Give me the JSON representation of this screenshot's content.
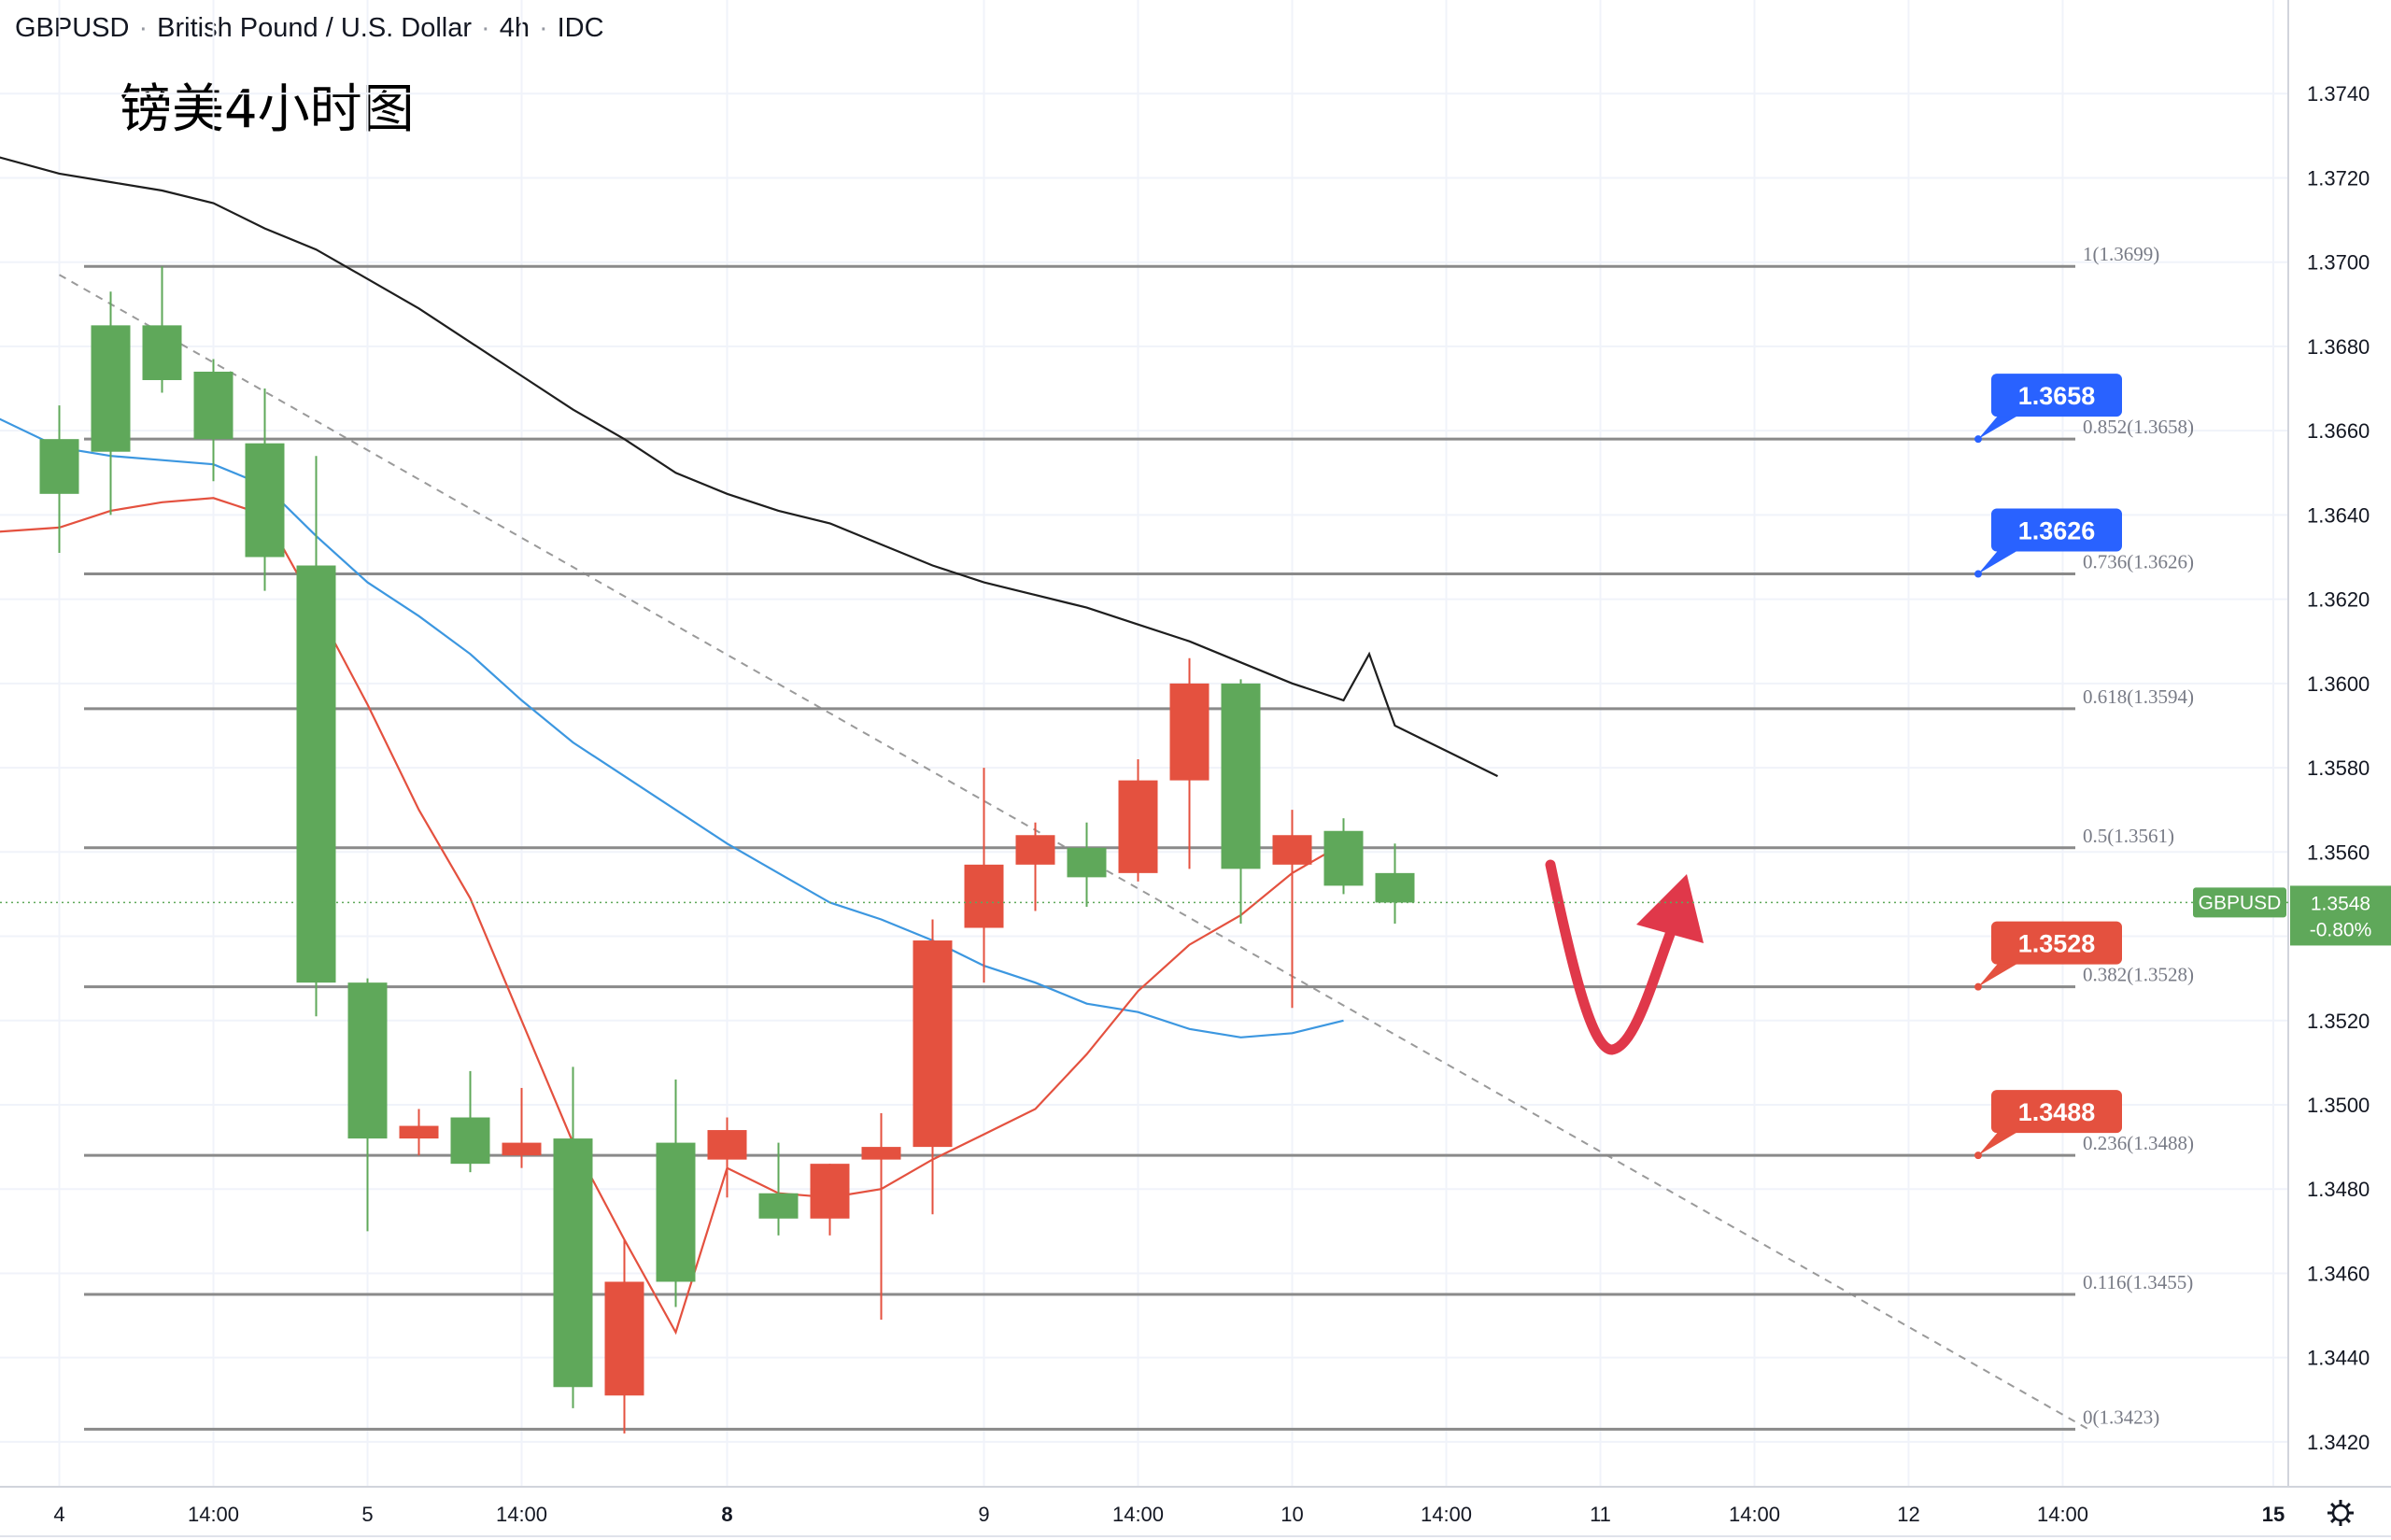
{
  "header": {
    "symbol": "GBPUSD",
    "name": "British Pound / U.S. Dollar",
    "interval": "4h",
    "source": "IDC"
  },
  "annotation_title": "镑美4小时图",
  "colors": {
    "up": "#5fa85a",
    "down": "#e4513f",
    "ma_fast": "#e4513f",
    "ma_mid": "#3c97e0",
    "ma_slow": "#1e1e1e",
    "fib_line": "#8a8a8a",
    "badge_blue": "#2962ff",
    "badge_red": "#e4513f",
    "arrow": "#e0384a",
    "current_price": "#5fa85a"
  },
  "chart_data": {
    "type": "candlestick",
    "ylim": [
      1.3412,
      1.376
    ],
    "yticks": [
      "1.3420",
      "1.3440",
      "1.3460",
      "1.3480",
      "1.3500",
      "1.3520",
      "1.3540",
      "1.3560",
      "1.3580",
      "1.3600",
      "1.3620",
      "1.3640",
      "1.3660",
      "1.3680",
      "1.3700",
      "1.3720",
      "1.3740"
    ],
    "xticks": [
      {
        "label": "4",
        "bar": 0.5,
        "bold": false
      },
      {
        "label": "14:00",
        "bar": 3.5,
        "bold": false
      },
      {
        "label": "5",
        "bar": 6.5,
        "bold": false
      },
      {
        "label": "14:00",
        "bar": 9.5,
        "bold": false
      },
      {
        "label": "8",
        "bar": 13.5,
        "bold": true
      },
      {
        "label": "9",
        "bar": 18.5,
        "bold": false
      },
      {
        "label": "14:00",
        "bar": 21.5,
        "bold": false
      },
      {
        "label": "10",
        "bar": 24.5,
        "bold": false
      },
      {
        "label": "14:00",
        "bar": 27.5,
        "bold": false
      },
      {
        "label": "11",
        "bar": 30.5,
        "bold": false
      },
      {
        "label": "14:00",
        "bar": 33.5,
        "bold": false
      },
      {
        "label": "12",
        "bar": 36.5,
        "bold": false
      },
      {
        "label": "14:00",
        "bar": 39.5,
        "bold": false
      },
      {
        "label": "15",
        "bar": 43.6,
        "bold": true
      }
    ],
    "candles": [
      {
        "o": 1.3645,
        "h": 1.3666,
        "l": 1.3631,
        "c": 1.3658
      },
      {
        "o": 1.3655,
        "h": 1.3693,
        "l": 1.364,
        "c": 1.3685
      },
      {
        "o": 1.3672,
        "h": 1.3699,
        "l": 1.3669,
        "c": 1.3685
      },
      {
        "o": 1.3658,
        "h": 1.3677,
        "l": 1.3648,
        "c": 1.3674
      },
      {
        "o": 1.363,
        "h": 1.367,
        "l": 1.3622,
        "c": 1.3657
      },
      {
        "o": 1.3529,
        "h": 1.3654,
        "l": 1.3521,
        "c": 1.3628
      },
      {
        "o": 1.3492,
        "h": 1.353,
        "l": 1.347,
        "c": 1.3529
      },
      {
        "o": 1.3495,
        "h": 1.3499,
        "l": 1.3488,
        "c": 1.3492
      },
      {
        "o": 1.3486,
        "h": 1.3508,
        "l": 1.3484,
        "c": 1.3497
      },
      {
        "o": 1.3491,
        "h": 1.3504,
        "l": 1.3485,
        "c": 1.3488
      },
      {
        "o": 1.3433,
        "h": 1.3509,
        "l": 1.3428,
        "c": 1.3492
      },
      {
        "o": 1.3458,
        "h": 1.3468,
        "l": 1.3422,
        "c": 1.3431
      },
      {
        "o": 1.3458,
        "h": 1.3506,
        "l": 1.3452,
        "c": 1.3491
      },
      {
        "o": 1.3494,
        "h": 1.3497,
        "l": 1.3478,
        "c": 1.3487
      },
      {
        "o": 1.3473,
        "h": 1.3491,
        "l": 1.3469,
        "c": 1.3479
      },
      {
        "o": 1.3486,
        "h": 1.3486,
        "l": 1.3469,
        "c": 1.3473
      },
      {
        "o": 1.349,
        "h": 1.3498,
        "l": 1.3449,
        "c": 1.3487
      },
      {
        "o": 1.3539,
        "h": 1.3544,
        "l": 1.3474,
        "c": 1.349
      },
      {
        "o": 1.3557,
        "h": 1.358,
        "l": 1.3529,
        "c": 1.3542
      },
      {
        "o": 1.3564,
        "h": 1.3567,
        "l": 1.3546,
        "c": 1.3557
      },
      {
        "o": 1.3554,
        "h": 1.3567,
        "l": 1.3547,
        "c": 1.3561
      },
      {
        "o": 1.3577,
        "h": 1.3582,
        "l": 1.3553,
        "c": 1.3555
      },
      {
        "o": 1.36,
        "h": 1.3606,
        "l": 1.3556,
        "c": 1.3577
      },
      {
        "o": 1.3556,
        "h": 1.3601,
        "l": 1.3543,
        "c": 1.36
      },
      {
        "o": 1.3564,
        "h": 1.357,
        "l": 1.3523,
        "c": 1.3557
      },
      {
        "o": 1.3552,
        "h": 1.3568,
        "l": 1.355,
        "c": 1.3565
      },
      {
        "o": 1.3548,
        "h": 1.3562,
        "l": 1.3543,
        "c": 1.3555
      }
    ],
    "ma_fast": [
      [
        -0.7,
        1.3636
      ],
      [
        0.5,
        1.3637
      ],
      [
        1.5,
        1.3641
      ],
      [
        2.5,
        1.3643
      ],
      [
        3.5,
        1.3644
      ],
      [
        4.5,
        1.364
      ],
      [
        5.5,
        1.3618
      ],
      [
        6.5,
        1.3595
      ],
      [
        7.5,
        1.357
      ],
      [
        8.5,
        1.3549
      ],
      [
        9.5,
        1.352
      ],
      [
        10.5,
        1.3491
      ],
      [
        11.5,
        1.3468
      ],
      [
        12.5,
        1.3446
      ],
      [
        13.5,
        1.3485
      ],
      [
        14.5,
        1.3479
      ],
      [
        15.5,
        1.3478
      ],
      [
        16.5,
        1.348
      ],
      [
        17.5,
        1.3487
      ],
      [
        18.5,
        1.3493
      ],
      [
        19.5,
        1.3499
      ],
      [
        20.5,
        1.3512
      ],
      [
        21.5,
        1.3527
      ],
      [
        22.5,
        1.3538
      ],
      [
        23.5,
        1.3545
      ],
      [
        24.5,
        1.3555
      ],
      [
        25.5,
        1.3562
      ]
    ],
    "ma_mid": [
      [
        -0.7,
        1.3663
      ],
      [
        0.5,
        1.3656
      ],
      [
        1.5,
        1.3654
      ],
      [
        2.5,
        1.3653
      ],
      [
        3.5,
        1.3652
      ],
      [
        4.5,
        1.3647
      ],
      [
        5.5,
        1.3635
      ],
      [
        6.5,
        1.3624
      ],
      [
        7.5,
        1.3616
      ],
      [
        8.5,
        1.3607
      ],
      [
        9.5,
        1.3596
      ],
      [
        10.5,
        1.3586
      ],
      [
        11.5,
        1.3578
      ],
      [
        12.5,
        1.357
      ],
      [
        13.5,
        1.3562
      ],
      [
        14.5,
        1.3555
      ],
      [
        15.5,
        1.3548
      ],
      [
        16.5,
        1.3544
      ],
      [
        17.5,
        1.3539
      ],
      [
        18.5,
        1.3533
      ],
      [
        19.5,
        1.3529
      ],
      [
        20.5,
        1.3524
      ],
      [
        21.5,
        1.3522
      ],
      [
        22.5,
        1.3518
      ],
      [
        23.5,
        1.3516
      ],
      [
        24.5,
        1.3517
      ],
      [
        25.5,
        1.352
      ]
    ],
    "ma_slow": [
      [
        -0.7,
        1.3725
      ],
      [
        0.5,
        1.3721
      ],
      [
        1.5,
        1.3719
      ],
      [
        2.5,
        1.3717
      ],
      [
        3.5,
        1.3714
      ],
      [
        4.5,
        1.3708
      ],
      [
        5.5,
        1.3703
      ],
      [
        6.5,
        1.3696
      ],
      [
        7.5,
        1.3689
      ],
      [
        8.5,
        1.3681
      ],
      [
        9.5,
        1.3673
      ],
      [
        10.5,
        1.3665
      ],
      [
        11.5,
        1.3658
      ],
      [
        12.5,
        1.365
      ],
      [
        13.5,
        1.3645
      ],
      [
        14.5,
        1.3641
      ],
      [
        15.5,
        1.3638
      ],
      [
        16.5,
        1.3633
      ],
      [
        17.5,
        1.3628
      ],
      [
        18.5,
        1.3624
      ],
      [
        19.5,
        1.3621
      ],
      [
        20.5,
        1.3618
      ],
      [
        21.5,
        1.3614
      ],
      [
        22.5,
        1.361
      ],
      [
        23.5,
        1.3605
      ],
      [
        24.5,
        1.36
      ],
      [
        25.5,
        1.3596
      ],
      [
        26.5,
        1.359
      ],
      [
        27.5,
        1.3584
      ],
      [
        28.5,
        1.3578
      ],
      [
        26.0,
        1.3607
      ]
    ],
    "trendline": {
      "from": [
        0.5,
        1.3697
      ],
      "to": [
        40.0,
        1.3423
      ]
    },
    "fib_levels": [
      {
        "ratio": "1",
        "price": 1.3699,
        "label": "1(1.3699)"
      },
      {
        "ratio": "0.852",
        "price": 1.3658,
        "label": "0.852(1.3658)"
      },
      {
        "ratio": "0.736",
        "price": 1.3626,
        "label": "0.736(1.3626)"
      },
      {
        "ratio": "0.618",
        "price": 1.3594,
        "label": "0.618(1.3594)"
      },
      {
        "ratio": "0.5",
        "price": 1.3561,
        "label": "0.5(1.3561)"
      },
      {
        "ratio": "0.382",
        "price": 1.3528,
        "label": "0.382(1.3528)"
      },
      {
        "ratio": "0.236",
        "price": 1.3488,
        "label": "0.236(1.3488)"
      },
      {
        "ratio": "0.116",
        "price": 1.3455,
        "label": "0.116(1.3455)"
      },
      {
        "ratio": "0",
        "price": 1.3423,
        "label": "0(1.3423)"
      }
    ],
    "badges": [
      {
        "text": "1.3658",
        "price": 1.3658,
        "color": "blue"
      },
      {
        "text": "1.3626",
        "price": 1.3626,
        "color": "blue"
      },
      {
        "text": "1.3528",
        "price": 1.3528,
        "color": "red"
      },
      {
        "text": "1.3488",
        "price": 1.3488,
        "color": "red"
      }
    ],
    "current_price": {
      "symbol": "GBPUSD",
      "price": 1.3548,
      "value": "1.3548",
      "change": "-0.80%"
    },
    "grid": true,
    "projection": "v-shape red arrow: dip then rebound"
  }
}
